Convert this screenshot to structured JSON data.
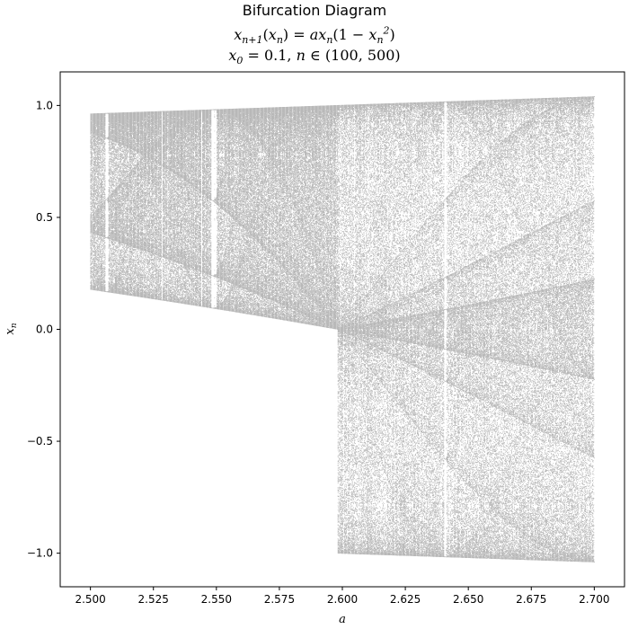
{
  "chart_data": {
    "type": "scatter",
    "title": "Bifurcation Diagram",
    "subtitle_equation": {
      "lhs": "x",
      "lhs_sub": "n+1",
      "lhs_arg": "x",
      "lhs_arg_sub": "n",
      "rhs_coef": "a",
      "rhs_x": "x",
      "rhs_x_sub": "n",
      "rhs_paren_one": "1",
      "rhs_inner_x": "x",
      "rhs_inner_sub": "n",
      "rhs_inner_sup": "2"
    },
    "params_line": {
      "x0_label": "x",
      "x0_sub": "0",
      "x0_value": "0.1",
      "n_label": "n",
      "n_set": "(100, 500)"
    },
    "xlabel": "a",
    "ylabel": "x",
    "ylabel_sub": "n",
    "xlim": [
      2.488,
      2.712
    ],
    "ylim": [
      -1.15,
      1.15
    ],
    "xticks": [
      2.5,
      2.525,
      2.55,
      2.575,
      2.6,
      2.625,
      2.65,
      2.675,
      2.7
    ],
    "xtick_labels": [
      "2.500",
      "2.525",
      "2.550",
      "2.575",
      "2.600",
      "2.625",
      "2.650",
      "2.675",
      "2.700"
    ],
    "yticks": [
      1.0,
      0.5,
      0.0,
      -0.5,
      -1.0
    ],
    "ytick_labels": [
      "1.0",
      "0.5",
      "0.0",
      "−0.5",
      "−1.0"
    ],
    "grid": false,
    "a_range": [
      2.5,
      2.7
    ],
    "x0": 0.1,
    "n_range": [
      100,
      500
    ],
    "point_color": "#000000"
  }
}
